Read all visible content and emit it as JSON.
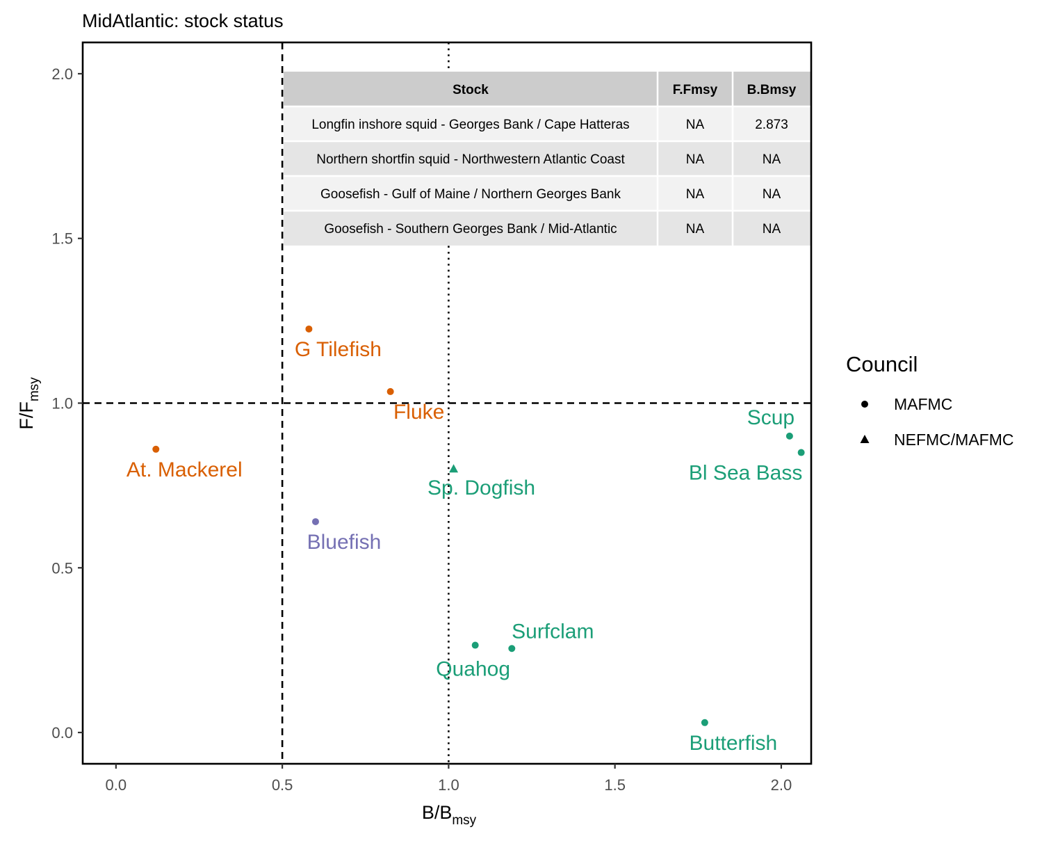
{
  "chart_data": {
    "type": "scatter",
    "title": "MidAtlantic: stock status",
    "xlabel": "B/B",
    "xlabel_sub": "msy",
    "ylabel": "F/F",
    "ylabel_sub": "msy",
    "xlim": [
      -0.1,
      2.09
    ],
    "ylim": [
      -0.095,
      2.095
    ],
    "x_ticks": [
      0.0,
      0.5,
      1.0,
      1.5,
      2.0
    ],
    "x_tick_labels": [
      "0.0",
      "0.5",
      "1.0",
      "1.5",
      "2.0"
    ],
    "y_ticks": [
      0.0,
      0.5,
      1.0,
      1.5,
      2.0
    ],
    "y_tick_labels": [
      "0.0",
      "0.5",
      "1.0",
      "1.5",
      "2.0"
    ],
    "grid": false,
    "reference_lines": {
      "dashed_vertical_x": 0.5,
      "dotted_vertical_x": 1.0,
      "dashed_horizontal_y": 1.0
    },
    "legend": {
      "title": "Council",
      "position": "right",
      "entries": [
        {
          "label": "MAFMC",
          "shape": "circle"
        },
        {
          "label": "NEFMC/MAFMC",
          "shape": "triangle"
        }
      ]
    },
    "colors": {
      "orange": "#d95f02",
      "green": "#1b9e77",
      "purple": "#7570b3"
    },
    "points": [
      {
        "label": "G Tilefish",
        "x": 0.58,
        "y": 1.225,
        "council": "MAFMC",
        "color": "#d95f02"
      },
      {
        "label": "Fluke",
        "x": 0.825,
        "y": 1.035,
        "council": "MAFMC",
        "color": "#d95f02"
      },
      {
        "label": "At. Mackerel",
        "x": 0.12,
        "y": 0.86,
        "council": "MAFMC",
        "color": "#d95f02"
      },
      {
        "label": "Bluefish",
        "x": 0.6,
        "y": 0.64,
        "council": "MAFMC",
        "color": "#7570b3"
      },
      {
        "label": "Sp. Dogfish",
        "x": 1.015,
        "y": 0.8,
        "council": "NEFMC/MAFMC",
        "color": "#1b9e77"
      },
      {
        "label": "Scup",
        "x": 2.025,
        "y": 0.9,
        "council": "MAFMC",
        "color": "#1b9e77"
      },
      {
        "label": "Bl Sea Bass",
        "x": 2.06,
        "y": 0.85,
        "council": "MAFMC",
        "color": "#1b9e77"
      },
      {
        "label": "Surfclam",
        "x": 1.19,
        "y": 0.255,
        "council": "MAFMC",
        "color": "#1b9e77"
      },
      {
        "label": "Quahog",
        "x": 1.08,
        "y": 0.265,
        "council": "MAFMC",
        "color": "#1b9e77"
      },
      {
        "label": "Butterfish",
        "x": 1.77,
        "y": 0.03,
        "council": "MAFMC",
        "color": "#1b9e77"
      }
    ],
    "table": {
      "headers": [
        "Stock",
        "F.Fmsy",
        "B.Bmsy"
      ],
      "rows": [
        [
          "Longfin inshore squid - Georges Bank / Cape Hatteras",
          "NA",
          "2.873"
        ],
        [
          "Northern shortfin squid - Northwestern Atlantic Coast",
          "NA",
          "NA"
        ],
        [
          "Goosefish - Gulf of Maine / Northern Georges Bank",
          "NA",
          "NA"
        ],
        [
          "Goosefish - Southern Georges Bank / Mid-Atlantic",
          "NA",
          "NA"
        ]
      ]
    }
  }
}
